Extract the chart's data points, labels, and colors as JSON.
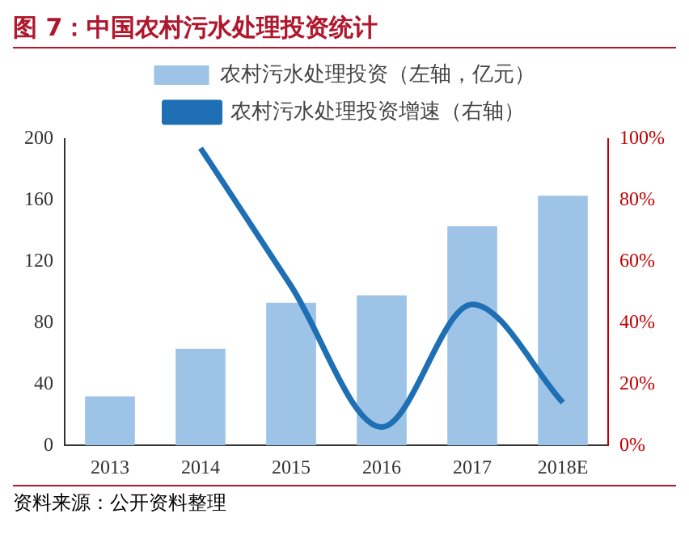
{
  "chart_data": {
    "type": "bar",
    "title": "图 7：中国农村污水处理投资统计",
    "categories": [
      "2013",
      "2014",
      "2015",
      "2016",
      "2017",
      "2018E"
    ],
    "series": [
      {
        "name": "农村污水处理投资（左轴，亿元）",
        "color": "#9dc3e6",
        "values": [
          32,
          63,
          93,
          98,
          143,
          163
        ]
      },
      {
        "name": "农村污水处理投资增速（右轴）",
        "type": "line",
        "axis": "y2",
        "color": "#1f6fb5",
        "values": [
          null,
          97,
          52,
          6,
          46,
          14
        ]
      }
    ],
    "ylim": [
      0,
      200
    ],
    "yticks": [
      0,
      40,
      80,
      120,
      160,
      200
    ],
    "y2lim": [
      0,
      100
    ],
    "y2ticks": [
      {
        "value": 0,
        "label": "0%"
      },
      {
        "value": 20,
        "label": "20%"
      },
      {
        "value": 40,
        "label": "40%"
      },
      {
        "value": 60,
        "label": "60%"
      },
      {
        "value": 80,
        "label": "80%"
      },
      {
        "value": 100,
        "label": "100%"
      }
    ],
    "grid": false,
    "legend": "top",
    "marker": "none",
    "annotations": [
      "资料来源：公开资料整理"
    ]
  }
}
